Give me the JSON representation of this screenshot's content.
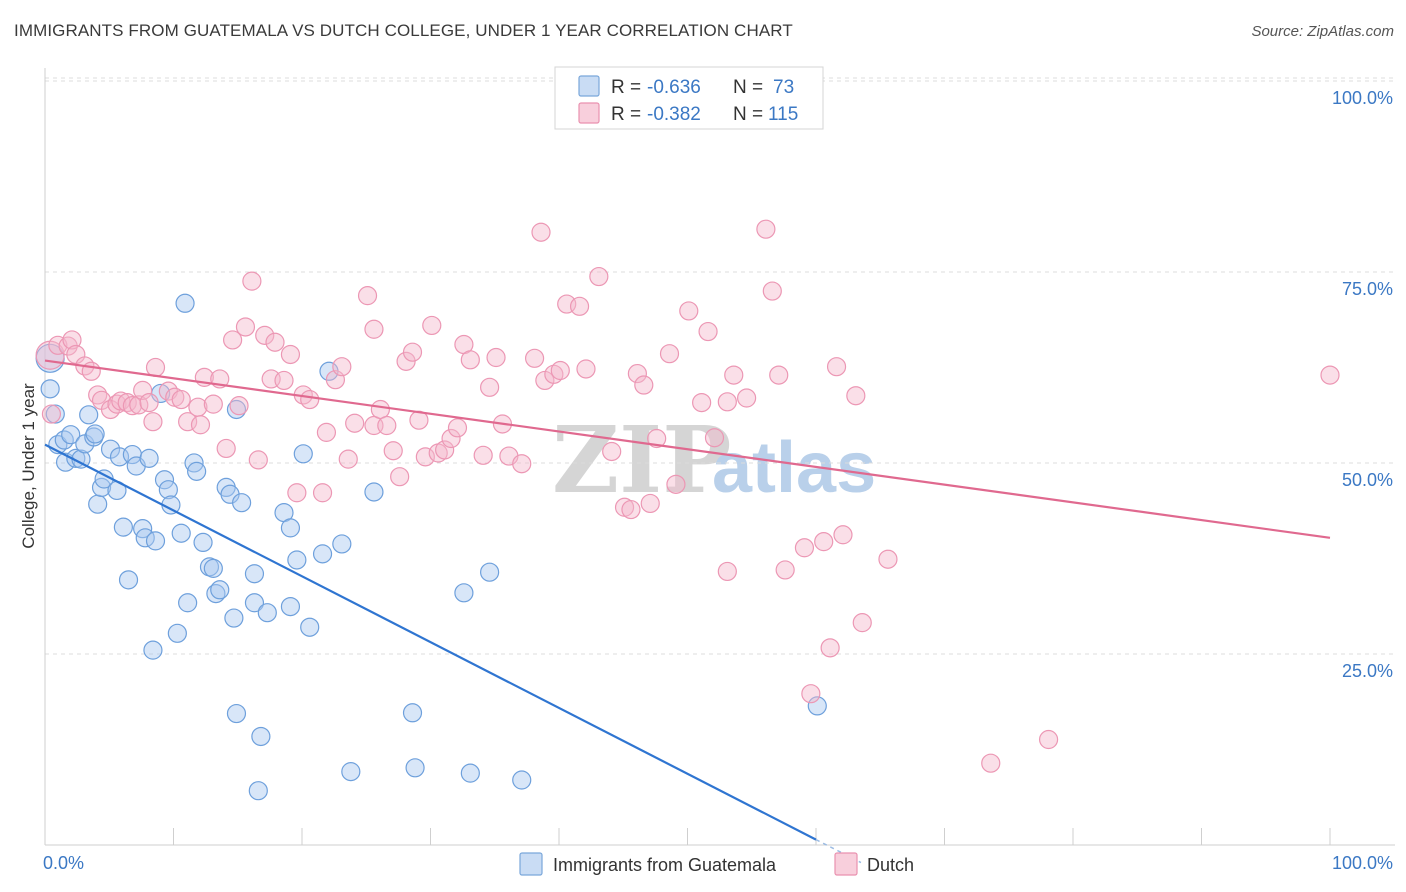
{
  "header": {
    "title": "IMMIGRANTS FROM GUATEMALA VS DUTCH COLLEGE, UNDER 1 YEAR CORRELATION CHART",
    "source": "Source: ZipAtlas.com"
  },
  "watermark": {
    "part1": "ZIP",
    "part2": "atlas"
  },
  "legend": {
    "rows": [
      {
        "r_label": "R =",
        "r_value": "-0.636",
        "n_label": "N =",
        "n_value": "73",
        "color": "#a8c8f0"
      },
      {
        "r_label": "R =",
        "r_value": "-0.382",
        "n_label": "N =",
        "n_value": "115",
        "color": "#f5b8cb"
      }
    ]
  },
  "bottom_legend": {
    "items": [
      {
        "label": "Immigrants from Guatemala",
        "color": "#a8c8f0"
      },
      {
        "label": "Dutch",
        "color": "#f5b8cb"
      }
    ]
  },
  "chart_data": {
    "type": "scatter",
    "title": "IMMIGRANTS FROM GUATEMALA VS DUTCH COLLEGE, UNDER 1 YEAR CORRELATION CHART",
    "xlabel": "",
    "ylabel": "College, Under 1 year",
    "xlim": [
      0,
      100
    ],
    "ylim": [
      0,
      105
    ],
    "x_tick_labels": [
      "0.0%",
      "100.0%"
    ],
    "y_tick_labels": [
      "25.0%",
      "50.0%",
      "75.0%",
      "100.0%"
    ],
    "y_ticks": [
      25,
      50,
      75,
      100
    ],
    "grid": true,
    "series": [
      {
        "name": "Immigrants from Guatemala",
        "color": "#5b9bd5",
        "fill": "#a8c8f0",
        "trend": {
          "x": [
            0,
            60
          ],
          "y": [
            54.5,
            2.8
          ],
          "dashed_x": [
            60,
            63.5
          ],
          "dashed_y": [
            2.8,
            -0.2
          ]
        },
        "points": [
          [
            0.4,
            65.8
          ],
          [
            0.4,
            61.8
          ],
          [
            0.8,
            58.5
          ],
          [
            1.0,
            54.5
          ],
          [
            1.5,
            55.1
          ],
          [
            1.6,
            52.2
          ],
          [
            2.0,
            55.8
          ],
          [
            2.4,
            52.7
          ],
          [
            2.8,
            52.6
          ],
          [
            3.1,
            54.6
          ],
          [
            3.4,
            58.4
          ],
          [
            3.8,
            55.5
          ],
          [
            3.9,
            55.9
          ],
          [
            4.1,
            46.7
          ],
          [
            4.4,
            48.9
          ],
          [
            4.6,
            50.0
          ],
          [
            5.1,
            53.9
          ],
          [
            5.6,
            48.5
          ],
          [
            5.8,
            52.9
          ],
          [
            6.1,
            43.7
          ],
          [
            6.5,
            36.8
          ],
          [
            6.8,
            53.2
          ],
          [
            7.1,
            51.7
          ],
          [
            7.6,
            43.5
          ],
          [
            7.8,
            42.3
          ],
          [
            8.1,
            52.7
          ],
          [
            8.4,
            27.6
          ],
          [
            8.6,
            41.9
          ],
          [
            9.0,
            61.2
          ],
          [
            9.3,
            49.9
          ],
          [
            9.6,
            48.6
          ],
          [
            9.8,
            46.6
          ],
          [
            10.3,
            29.8
          ],
          [
            10.6,
            42.9
          ],
          [
            10.9,
            73.0
          ],
          [
            11.1,
            33.8
          ],
          [
            11.6,
            52.1
          ],
          [
            11.8,
            51.0
          ],
          [
            12.3,
            41.7
          ],
          [
            12.8,
            38.5
          ],
          [
            13.1,
            38.3
          ],
          [
            13.3,
            35.0
          ],
          [
            13.6,
            35.5
          ],
          [
            14.1,
            48.9
          ],
          [
            14.4,
            48.0
          ],
          [
            14.9,
            59.1
          ],
          [
            14.7,
            31.8
          ],
          [
            14.9,
            19.3
          ],
          [
            15.3,
            46.9
          ],
          [
            16.3,
            37.6
          ],
          [
            16.3,
            33.8
          ],
          [
            16.6,
            9.2
          ],
          [
            16.8,
            16.3
          ],
          [
            17.3,
            32.5
          ],
          [
            18.6,
            45.6
          ],
          [
            19.1,
            43.6
          ],
          [
            19.1,
            33.3
          ],
          [
            19.6,
            39.4
          ],
          [
            20.1,
            53.3
          ],
          [
            20.6,
            30.6
          ],
          [
            21.6,
            40.2
          ],
          [
            22.1,
            64.1
          ],
          [
            23.1,
            41.5
          ],
          [
            23.8,
            11.7
          ],
          [
            25.6,
            48.3
          ],
          [
            28.6,
            19.4
          ],
          [
            28.8,
            12.2
          ],
          [
            32.6,
            35.1
          ],
          [
            33.1,
            11.5
          ],
          [
            34.6,
            37.8
          ],
          [
            37.1,
            10.6
          ],
          [
            60.1,
            20.3
          ]
        ]
      },
      {
        "name": "Dutch",
        "color": "#e86f98",
        "fill": "#f5b8cb",
        "trend": {
          "x": [
            0,
            100
          ],
          "y": [
            65.5,
            42.3
          ]
        },
        "points": [
          [
            0.4,
            66.2
          ],
          [
            0.5,
            58.5
          ],
          [
            1.0,
            67.5
          ],
          [
            1.8,
            67.4
          ],
          [
            2.1,
            68.2
          ],
          [
            2.4,
            66.3
          ],
          [
            3.1,
            64.8
          ],
          [
            3.6,
            64.1
          ],
          [
            4.1,
            61.0
          ],
          [
            4.4,
            60.3
          ],
          [
            5.1,
            59.1
          ],
          [
            5.6,
            59.8
          ],
          [
            5.9,
            60.2
          ],
          [
            6.4,
            60.0
          ],
          [
            6.8,
            59.6
          ],
          [
            7.3,
            59.7
          ],
          [
            7.6,
            61.6
          ],
          [
            8.1,
            60.0
          ],
          [
            8.4,
            57.5
          ],
          [
            8.6,
            64.6
          ],
          [
            9.6,
            61.5
          ],
          [
            10.1,
            60.7
          ],
          [
            10.6,
            60.4
          ],
          [
            11.1,
            57.5
          ],
          [
            11.9,
            59.4
          ],
          [
            12.1,
            57.1
          ],
          [
            12.4,
            63.3
          ],
          [
            13.1,
            59.8
          ],
          [
            13.6,
            63.1
          ],
          [
            14.1,
            54.0
          ],
          [
            14.6,
            68.2
          ],
          [
            15.1,
            59.6
          ],
          [
            15.6,
            69.9
          ],
          [
            16.1,
            75.9
          ],
          [
            16.6,
            52.5
          ],
          [
            17.1,
            68.8
          ],
          [
            17.6,
            63.1
          ],
          [
            17.9,
            67.9
          ],
          [
            18.6,
            62.9
          ],
          [
            19.1,
            66.3
          ],
          [
            19.6,
            48.2
          ],
          [
            20.1,
            61.0
          ],
          [
            20.6,
            60.4
          ],
          [
            21.6,
            48.2
          ],
          [
            21.9,
            56.1
          ],
          [
            22.6,
            63.0
          ],
          [
            23.1,
            64.7
          ],
          [
            23.6,
            52.6
          ],
          [
            24.1,
            57.3
          ],
          [
            25.1,
            74.0
          ],
          [
            25.6,
            69.6
          ],
          [
            25.6,
            57.0
          ],
          [
            26.1,
            59.1
          ],
          [
            26.6,
            57.0
          ],
          [
            27.1,
            53.7
          ],
          [
            27.6,
            50.3
          ],
          [
            28.1,
            65.4
          ],
          [
            28.6,
            66.6
          ],
          [
            29.1,
            57.7
          ],
          [
            29.6,
            52.9
          ],
          [
            30.1,
            70.1
          ],
          [
            30.6,
            53.4
          ],
          [
            31.1,
            53.8
          ],
          [
            31.6,
            55.3
          ],
          [
            32.1,
            56.7
          ],
          [
            32.6,
            67.6
          ],
          [
            33.1,
            65.6
          ],
          [
            34.1,
            53.1
          ],
          [
            34.6,
            62.0
          ],
          [
            35.1,
            65.9
          ],
          [
            35.6,
            57.2
          ],
          [
            36.1,
            53.0
          ],
          [
            37.1,
            52.0
          ],
          [
            38.1,
            65.8
          ],
          [
            38.6,
            82.3
          ],
          [
            38.9,
            62.9
          ],
          [
            39.6,
            63.7
          ],
          [
            40.1,
            64.2
          ],
          [
            40.6,
            72.9
          ],
          [
            41.6,
            72.6
          ],
          [
            42.1,
            64.4
          ],
          [
            43.1,
            76.5
          ],
          [
            44.1,
            53.6
          ],
          [
            45.1,
            46.3
          ],
          [
            45.6,
            46.0
          ],
          [
            46.1,
            63.8
          ],
          [
            46.6,
            62.3
          ],
          [
            47.1,
            46.8
          ],
          [
            47.6,
            55.3
          ],
          [
            48.6,
            66.4
          ],
          [
            49.1,
            49.3
          ],
          [
            50.1,
            72.0
          ],
          [
            51.1,
            60.0
          ],
          [
            51.6,
            69.3
          ],
          [
            52.1,
            55.4
          ],
          [
            53.1,
            60.1
          ],
          [
            53.6,
            63.6
          ],
          [
            53.1,
            37.9
          ],
          [
            54.6,
            60.6
          ],
          [
            56.1,
            82.7
          ],
          [
            56.6,
            74.6
          ],
          [
            57.1,
            63.6
          ],
          [
            57.6,
            38.1
          ],
          [
            59.1,
            41.0
          ],
          [
            59.6,
            21.9
          ],
          [
            60.6,
            41.8
          ],
          [
            61.1,
            27.9
          ],
          [
            61.6,
            64.7
          ],
          [
            62.1,
            42.7
          ],
          [
            63.1,
            60.9
          ],
          [
            63.6,
            31.2
          ],
          [
            65.6,
            39.5
          ],
          [
            73.6,
            12.8
          ],
          [
            78.1,
            15.9
          ],
          [
            100,
            63.6
          ]
        ]
      }
    ]
  }
}
